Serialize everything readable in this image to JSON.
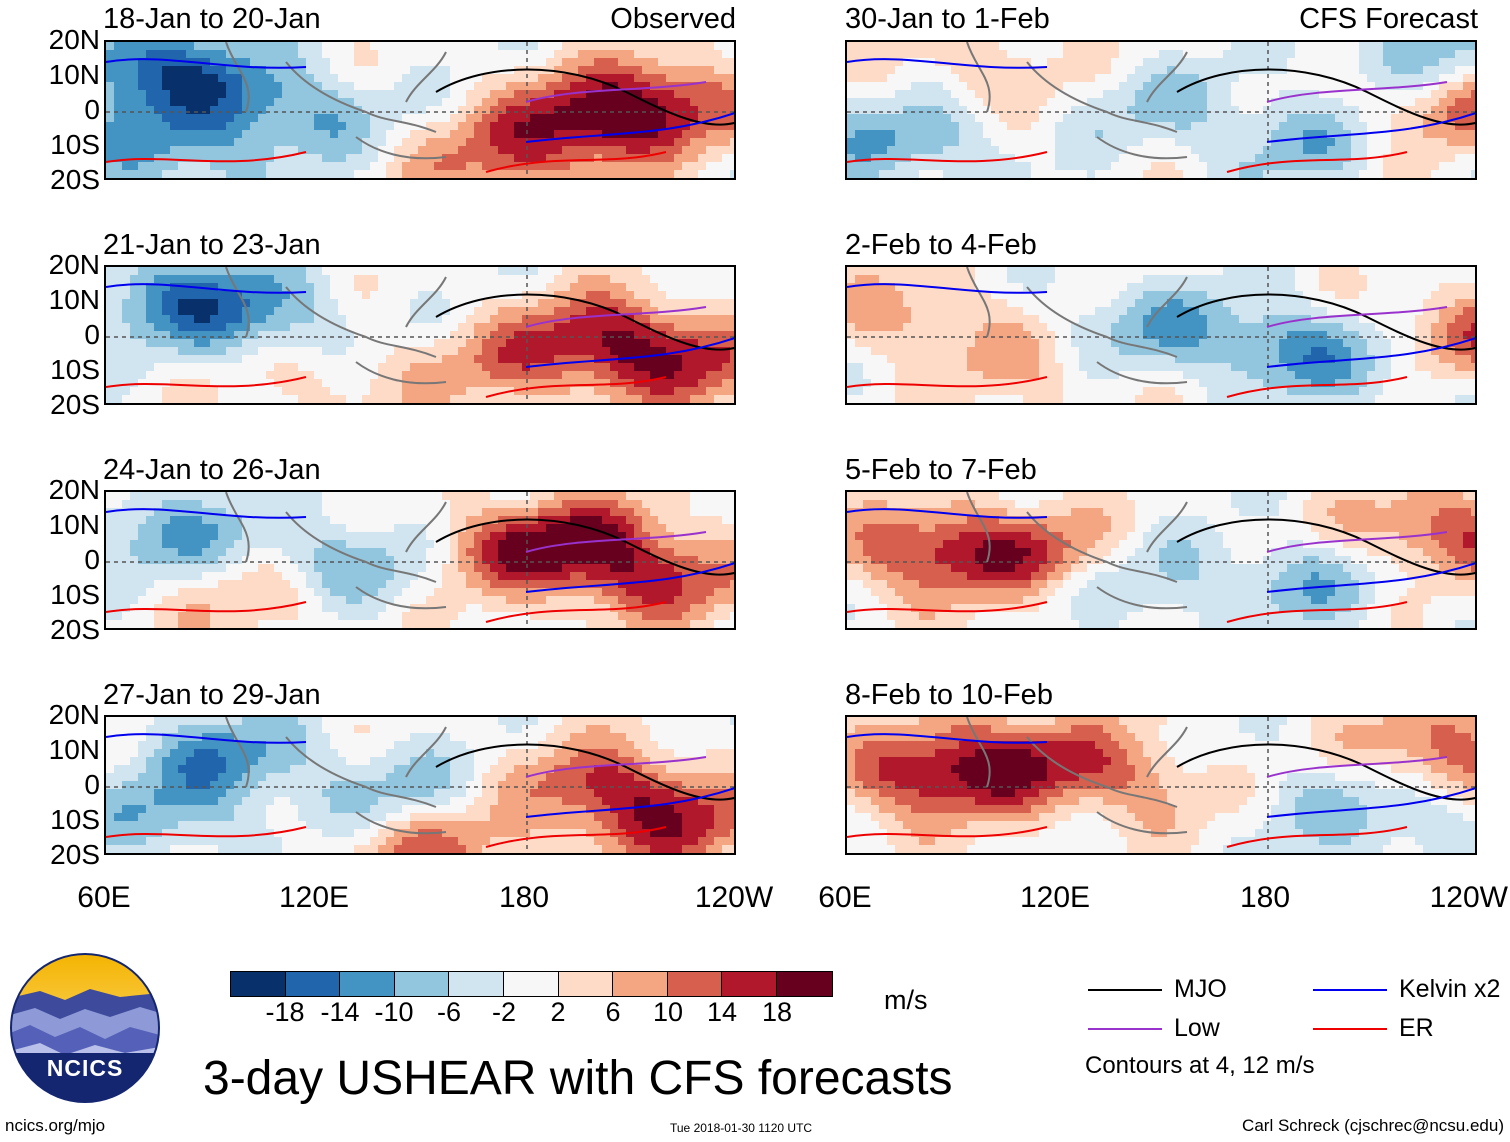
{
  "panels": {
    "obs": [
      {
        "title": "18-Jan to 20-Jan",
        "label": "Observed"
      },
      {
        "title": "21-Jan to 23-Jan"
      },
      {
        "title": "24-Jan to 26-Jan"
      },
      {
        "title": "27-Jan to 29-Jan"
      }
    ],
    "fcst": [
      {
        "title": "30-Jan to 1-Feb",
        "label": "CFS Forecast"
      },
      {
        "title": "2-Feb to 4-Feb"
      },
      {
        "title": "5-Feb to 7-Feb"
      },
      {
        "title": "8-Feb to 10-Feb"
      }
    ]
  },
  "axes": {
    "lat_ticks": [
      "20N",
      "10N",
      "0",
      "10S",
      "20S"
    ],
    "lon_ticks": [
      "60E",
      "120E",
      "180",
      "120W"
    ]
  },
  "colorbar": {
    "colors": [
      "#08306b",
      "#2166ac",
      "#4393c3",
      "#92c5de",
      "#d1e5f0",
      "#f7f7f7",
      "#fddbc7",
      "#f4a582",
      "#d6604d",
      "#b2182b",
      "#67001f"
    ],
    "ticks": [
      "-18",
      "-14",
      "-10",
      "-6",
      "-2",
      "2",
      "6",
      "10",
      "14",
      "18"
    ],
    "units": "m/s"
  },
  "legend": {
    "mjo": {
      "label": "MJO",
      "color": "#000000"
    },
    "kelvin": {
      "label": "Kelvin x2",
      "color": "#0000ee"
    },
    "low": {
      "label": "Low",
      "color": "#9932cc"
    },
    "er": {
      "label": "ER",
      "color": "#ee0000"
    },
    "note": "Contours at 4, 12 m/s"
  },
  "title": "3-day USHEAR with CFS forecasts",
  "logo": {
    "text": "NCICS"
  },
  "footer": {
    "left": "ncics.org/mjo",
    "center": "Tue 2018-01-30 1120 UTC",
    "right": "Carl Schreck (cjschrec@ncsu.edu)"
  }
}
